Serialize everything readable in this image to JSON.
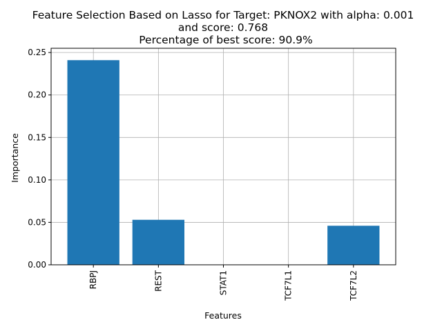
{
  "chart_data": {
    "type": "bar",
    "title_lines": [
      "Feature Selection Based on Lasso for Target: PKNOX2 with alpha: 0.001",
      "and score: 0.768",
      "Percentage of best score: 90.9%"
    ],
    "xlabel": "Features",
    "ylabel": "Importance",
    "categories": [
      "RBPJ",
      "REST",
      "STAT1",
      "TCF7L1",
      "TCF7L2"
    ],
    "values": [
      0.241,
      0.053,
      0.0,
      0.0,
      0.046
    ],
    "ylim": [
      0,
      0.255
    ],
    "yticks": [
      0.0,
      0.05,
      0.1,
      0.15,
      0.2,
      0.25
    ],
    "ytick_labels": [
      "0.00",
      "0.05",
      "0.10",
      "0.15",
      "0.20",
      "0.25"
    ],
    "grid": true,
    "bar_color": "#1f77b4"
  }
}
